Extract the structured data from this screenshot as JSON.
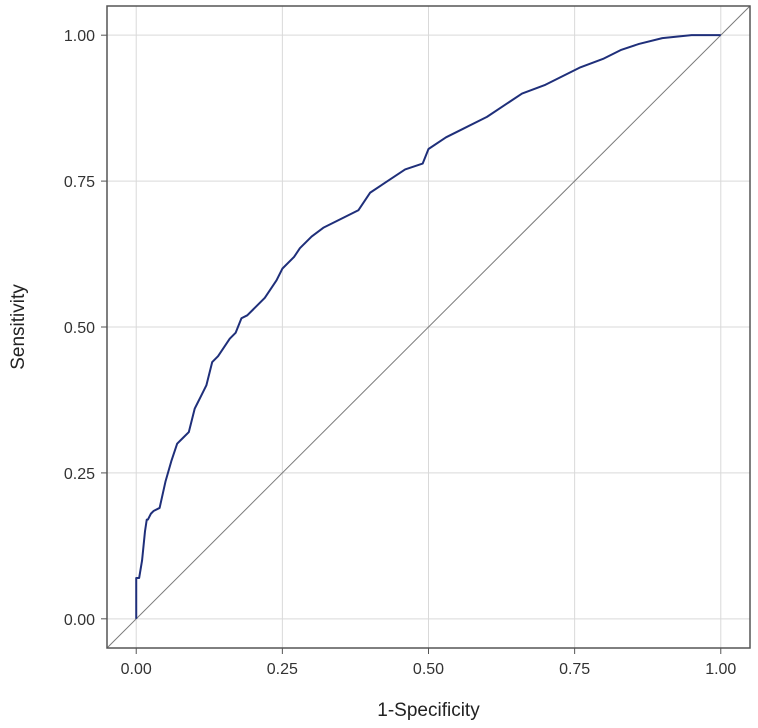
{
  "chart_data": {
    "type": "line",
    "title": "",
    "xlabel": "1-Specificity",
    "ylabel": "Sensitivity",
    "xlim": [
      -0.05,
      1.05
    ],
    "ylim": [
      -0.05,
      1.05
    ],
    "x_ticks": [
      0,
      0.25,
      0.5,
      0.75,
      1
    ],
    "y_ticks": [
      0,
      0.25,
      0.5,
      0.75,
      1
    ],
    "x_tick_labels": [
      "0.00",
      "0.25",
      "0.50",
      "0.75",
      "1.00"
    ],
    "y_tick_labels": [
      "0.00",
      "0.25",
      "0.50",
      "0.75",
      "1.00"
    ],
    "grid": true,
    "series": [
      {
        "color": "#1f2f7a",
        "x": [
          0,
          0,
          0.005,
          0.01,
          0.015,
          0.018,
          0.02,
          0.025,
          0.03,
          0.04,
          0.05,
          0.06,
          0.07,
          0.08,
          0.09,
          0.1,
          0.105,
          0.11,
          0.12,
          0.13,
          0.14,
          0.15,
          0.16,
          0.17,
          0.18,
          0.19,
          0.2,
          0.22,
          0.24,
          0.25,
          0.27,
          0.28,
          0.3,
          0.32,
          0.35,
          0.38,
          0.4,
          0.43,
          0.46,
          0.49,
          0.5,
          0.53,
          0.56,
          0.6,
          0.63,
          0.66,
          0.7,
          0.73,
          0.76,
          0.8,
          0.83,
          0.86,
          0.9,
          0.95,
          1.0
        ],
        "y": [
          0,
          0.07,
          0.07,
          0.1,
          0.15,
          0.17,
          0.17,
          0.18,
          0.185,
          0.19,
          0.235,
          0.27,
          0.3,
          0.31,
          0.32,
          0.36,
          0.37,
          0.38,
          0.4,
          0.44,
          0.45,
          0.465,
          0.48,
          0.49,
          0.515,
          0.52,
          0.53,
          0.55,
          0.58,
          0.6,
          0.62,
          0.635,
          0.655,
          0.67,
          0.685,
          0.7,
          0.73,
          0.75,
          0.77,
          0.78,
          0.805,
          0.825,
          0.84,
          0.86,
          0.88,
          0.9,
          0.915,
          0.93,
          0.945,
          0.96,
          0.975,
          0.985,
          0.995,
          1.0,
          1.0
        ]
      }
    ],
    "reference_line": {
      "x": [
        0,
        1
      ],
      "y": [
        0,
        1
      ],
      "color": "#7a7a7a"
    }
  }
}
